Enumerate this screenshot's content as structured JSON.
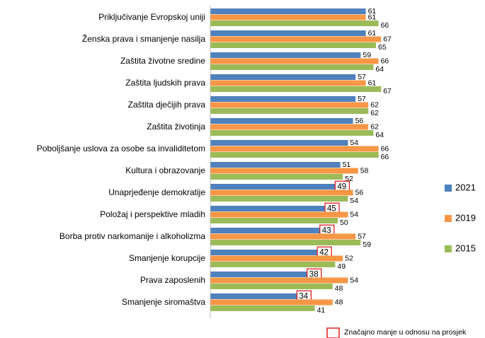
{
  "chart_data": {
    "type": "bar",
    "orientation": "horizontal",
    "categories": [
      "Priključivanje Evropskoj uniji",
      "Ženska prava i smanjenje nasilja",
      "Zaštita životne sredine",
      "Zaštita ljudskih prava",
      "Zaštita dječijih prava",
      "Zaštita životinja",
      "Poboljšanje uslova za osobe sa invaliditetom",
      "Kultura i obrazovanje",
      "Unaprjeđenje demokratije",
      "Položaj i perspektive mladih",
      "Borba protiv narkomanije i alkoholizma",
      "Smanjenje korupcije",
      "Prava zaposlenih",
      "Smanjenje siromaštva"
    ],
    "series": [
      {
        "name": "2021",
        "color": "#4f81bd",
        "values": [
          61,
          61,
          59,
          57,
          57,
          56,
          54,
          51,
          49,
          45,
          43,
          42,
          38,
          34
        ],
        "highlighted": [
          false,
          false,
          false,
          false,
          false,
          false,
          false,
          false,
          true,
          true,
          true,
          true,
          true,
          true
        ]
      },
      {
        "name": "2019",
        "color": "#f79646",
        "values": [
          61,
          67,
          66,
          61,
          62,
          62,
          66,
          58,
          56,
          54,
          57,
          52,
          54,
          48
        ]
      },
      {
        "name": "2015",
        "color": "#9bbb59",
        "values": [
          66,
          65,
          64,
          67,
          62,
          64,
          66,
          52,
          54,
          50,
          59,
          49,
          48,
          41
        ]
      }
    ],
    "highlight_color": "#e02020",
    "highlight_note": "Značajno manje u odnosu na prosjek",
    "legend": "right"
  }
}
